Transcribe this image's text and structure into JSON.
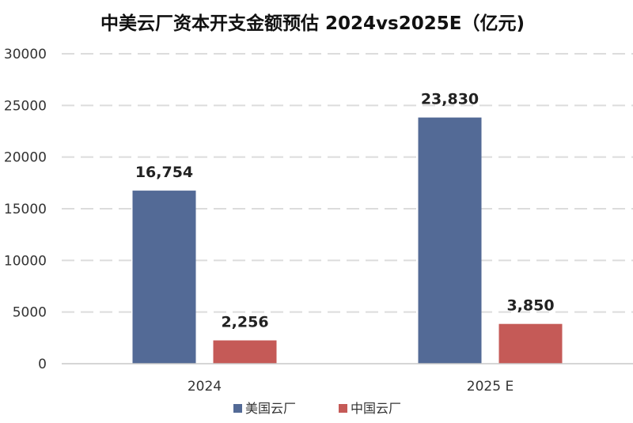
{
  "chart_data": {
    "type": "bar",
    "title": "中美云厂资本开支金额预估 2024vs2025E（亿元)",
    "categories": [
      "2024",
      "2025 E"
    ],
    "series": [
      {
        "name": "美国云厂",
        "values": [
          16754,
          23830
        ],
        "labels": [
          "16,754",
          "23,830"
        ],
        "color": "#536a96"
      },
      {
        "name": "中国云厂",
        "values": [
          2256,
          3850
        ],
        "labels": [
          "2,256",
          "3,850"
        ],
        "color": "#c55a57"
      }
    ],
    "ylim": [
      0,
      30000
    ],
    "yticks": [
      "0",
      "5000",
      "10000",
      "15000",
      "20000",
      "25000",
      "30000"
    ],
    "xlabel": "",
    "ylabel": "",
    "grid": true,
    "legend_position": "bottom"
  }
}
